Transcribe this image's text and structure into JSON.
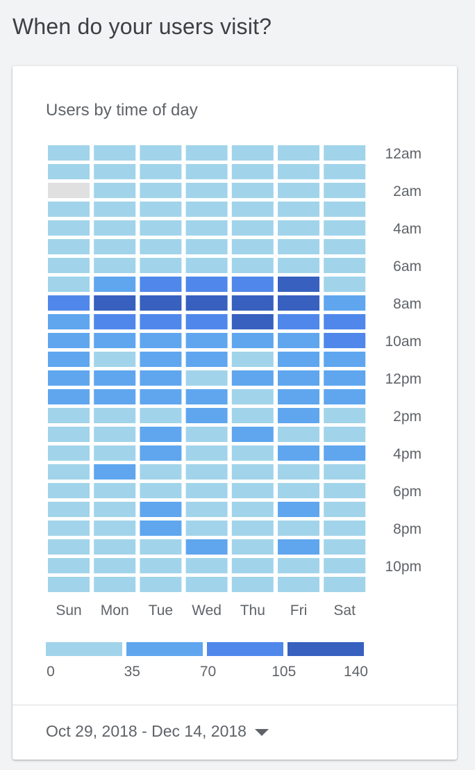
{
  "page": {
    "heading": "When do your users visit?"
  },
  "card": {
    "title": "Users by time of day",
    "date_range": "Oct 29, 2018 - Dec 14, 2018",
    "date_range_icon": "chevron-down-icon"
  },
  "colors": {
    "bin0": "#a1d4ea",
    "bin1": "#5fa6ef",
    "bin2": "#4f88ea",
    "bin3": "#3760bf",
    "no_data": "#e0e0e0"
  },
  "chart_data": {
    "type": "heatmap",
    "title": "Users by time of day",
    "days": [
      "Sun",
      "Mon",
      "Tue",
      "Wed",
      "Thu",
      "Fri",
      "Sat"
    ],
    "hour_tick_labels": [
      "12am",
      "2am",
      "4am",
      "6am",
      "8am",
      "10am",
      "12pm",
      "2pm",
      "4pm",
      "6pm",
      "8pm",
      "10pm"
    ],
    "legend": {
      "tick_labels": [
        "0",
        "35",
        "70",
        "105",
        "140"
      ],
      "bins": [
        [
          0,
          35
        ],
        [
          35,
          70
        ],
        [
          70,
          105
        ],
        [
          105,
          140
        ]
      ]
    },
    "value_range": [
      0,
      140
    ],
    "approx_values_by_hour": [
      [
        10,
        10,
        10,
        10,
        10,
        10,
        10
      ],
      [
        10,
        10,
        10,
        10,
        10,
        10,
        10
      ],
      [
        null,
        10,
        10,
        10,
        10,
        10,
        10
      ],
      [
        10,
        10,
        10,
        10,
        10,
        10,
        10
      ],
      [
        10,
        15,
        15,
        15,
        15,
        15,
        10
      ],
      [
        15,
        15,
        15,
        15,
        15,
        15,
        15
      ],
      [
        20,
        20,
        20,
        20,
        20,
        20,
        20
      ],
      [
        25,
        50,
        90,
        90,
        90,
        125,
        25
      ],
      [
        90,
        125,
        125,
        125,
        125,
        125,
        50
      ],
      [
        50,
        90,
        90,
        90,
        125,
        90,
        90
      ],
      [
        50,
        50,
        50,
        50,
        50,
        50,
        90
      ],
      [
        50,
        30,
        50,
        50,
        30,
        50,
        50
      ],
      [
        50,
        50,
        50,
        30,
        50,
        50,
        50
      ],
      [
        50,
        50,
        50,
        50,
        30,
        50,
        50
      ],
      [
        30,
        30,
        30,
        50,
        30,
        50,
        30
      ],
      [
        30,
        30,
        50,
        30,
        50,
        30,
        30
      ],
      [
        30,
        30,
        50,
        30,
        30,
        50,
        50
      ],
      [
        30,
        50,
        30,
        30,
        30,
        30,
        30
      ],
      [
        30,
        30,
        30,
        30,
        30,
        30,
        30
      ],
      [
        30,
        30,
        50,
        30,
        30,
        50,
        30
      ],
      [
        30,
        30,
        50,
        30,
        30,
        30,
        30
      ],
      [
        30,
        30,
        30,
        50,
        30,
        50,
        30
      ],
      [
        25,
        25,
        25,
        25,
        25,
        25,
        25
      ],
      [
        20,
        20,
        20,
        20,
        20,
        20,
        20
      ]
    ]
  }
}
